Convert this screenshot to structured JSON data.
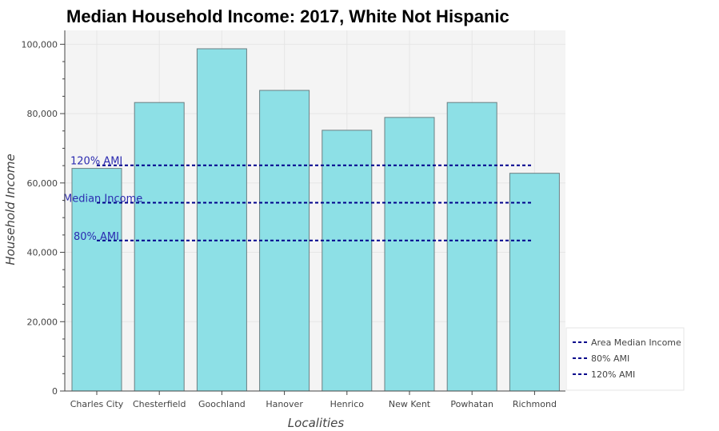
{
  "chart_data": {
    "type": "bar",
    "title": "Median Household Income: 2017, White Not Hispanic",
    "xlabel": "Localities",
    "ylabel": "Household Income",
    "categories": [
      "Charles City",
      "Chesterfield",
      "Goochland",
      "Hanover",
      "Henrico",
      "New Kent",
      "Powhatan",
      "Richmond"
    ],
    "values": [
      64200,
      83200,
      98700,
      86700,
      75200,
      78900,
      83200,
      62800
    ],
    "ylim": [
      0,
      104000
    ],
    "yticks": [
      0,
      20000,
      40000,
      60000,
      80000,
      100000
    ],
    "ytick_labels": [
      "0",
      "20,000",
      "40,000",
      "60,000",
      "80,000",
      "100,000"
    ],
    "bar_color": "#8de0e6",
    "bar_edge_color": "#6b7f82",
    "plot_background": "#f4f4f4",
    "grid": true,
    "reference_lines": [
      {
        "name": "Area Median Income",
        "label": "Median Income",
        "value": 54300
      },
      {
        "name": "80% AMI",
        "label": "80% AMI",
        "value": 43400
      },
      {
        "name": "120% AMI",
        "label": "120% AMI",
        "value": 65100
      }
    ],
    "reference_line_color": "#00008b",
    "reference_label_color": "#2b2bb0",
    "legend": {
      "placement": "bottom-right outside",
      "entries": [
        "Area Median Income",
        "80% AMI",
        "120% AMI"
      ]
    }
  }
}
